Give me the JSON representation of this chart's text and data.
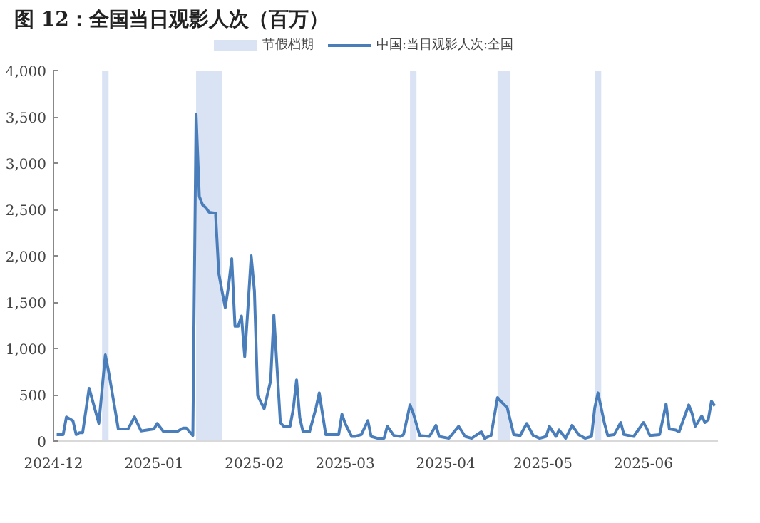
{
  "chart_data": {
    "type": "line",
    "title": "图 12：全国当日观影人次（百万）",
    "series": [
      {
        "name": "中国:当日观影人次:全国",
        "color": "#4a7ebb",
        "x": [
          "2024-12-16",
          "2024-12-18",
          "2024-12-19",
          "2024-12-21",
          "2024-12-22",
          "2024-12-23",
          "2024-12-24",
          "2024-12-26",
          "2024-12-29",
          "2024-12-31",
          "2025-01-01",
          "2025-01-03",
          "2025-01-04",
          "2025-01-07",
          "2025-01-09",
          "2025-01-11",
          "2025-01-15",
          "2025-01-16",
          "2025-01-18",
          "2025-01-22",
          "2025-01-24",
          "2025-01-25",
          "2025-01-27",
          "2025-01-28",
          "2025-01-29",
          "2025-01-30",
          "2025-01-31",
          "2025-02-01",
          "2025-02-03",
          "2025-02-04",
          "2025-02-05",
          "2025-02-06",
          "2025-02-07",
          "2025-02-08",
          "2025-02-09",
          "2025-02-10",
          "2025-02-11",
          "2025-02-12",
          "2025-02-13",
          "2025-02-14",
          "2025-02-15",
          "2025-02-16",
          "2025-02-17",
          "2025-02-18",
          "2025-02-20",
          "2025-02-21",
          "2025-02-23",
          "2025-02-24",
          "2025-02-26",
          "2025-02-27",
          "2025-02-28",
          "2025-03-01",
          "2025-03-02",
          "2025-03-04",
          "2025-03-06",
          "2025-03-07",
          "2025-03-09",
          "2025-03-10",
          "2025-03-13",
          "2025-03-14",
          "2025-03-15",
          "2025-03-17",
          "2025-03-18",
          "2025-03-20",
          "2025-03-22",
          "2025-03-23",
          "2025-03-25",
          "2025-03-27",
          "2025-03-28",
          "2025-03-30",
          "2025-04-01",
          "2025-04-02",
          "2025-04-04",
          "2025-04-05",
          "2025-04-07",
          "2025-04-10",
          "2025-04-12",
          "2025-04-13",
          "2025-04-16",
          "2025-04-19",
          "2025-04-21",
          "2025-04-23",
          "2025-04-26",
          "2025-04-27",
          "2025-04-29",
          "2025-05-01",
          "2025-05-02",
          "2025-05-04",
          "2025-05-06",
          "2025-05-08",
          "2025-05-10",
          "2025-05-12",
          "2025-05-14",
          "2025-05-16",
          "2025-05-17",
          "2025-05-19",
          "2025-05-20",
          "2025-05-22",
          "2025-05-24",
          "2025-05-26",
          "2025-05-28",
          "2025-05-30",
          "2025-05-31",
          "2025-06-01",
          "2025-06-03",
          "2025-06-04",
          "2025-06-06",
          "2025-06-08",
          "2025-06-09",
          "2025-06-12",
          "2025-06-13",
          "2025-06-15",
          "2025-06-16",
          "2025-06-17",
          "2025-06-20",
          "2025-06-22",
          "2025-06-23",
          "2025-06-25",
          "2025-06-26",
          "2025-06-29",
          "2025-06-30",
          "2025-07-01",
          "2025-07-03",
          "2025-07-04",
          "2025-07-05",
          "2025-07-06",
          "2025-07-07"
        ],
        "values": [
          70,
          70,
          260,
          220,
          70,
          90,
          90,
          570,
          190,
          930,
          750,
          340,
          130,
          130,
          260,
          110,
          130,
          190,
          100,
          100,
          140,
          140,
          60,
          3530,
          2640,
          2550,
          2520,
          2470,
          2460,
          1810,
          1620,
          1440,
          1670,
          1970,
          1240,
          1240,
          1350,
          910,
          1440,
          2000,
          1620,
          490,
          420,
          350,
          650,
          1360,
          200,
          160,
          160,
          350,
          660,
          250,
          100,
          100,
          360,
          520,
          70,
          70,
          70,
          290,
          190,
          50,
          50,
          70,
          220,
          50,
          30,
          30,
          160,
          60,
          50,
          70,
          390,
          300,
          60,
          50,
          170,
          50,
          30,
          160,
          50,
          30,
          100,
          30,
          60,
          470,
          430,
          360,
          70,
          60,
          190,
          60,
          30,
          50,
          160,
          50,
          120,
          30,
          170,
          70,
          30,
          50,
          360,
          520,
          190,
          60,
          70,
          200,
          70,
          50,
          100,
          200,
          140,
          60,
          70,
          400,
          130,
          120,
          100,
          390,
          300,
          160,
          270,
          200,
          230,
          430,
          380
        ]
      }
    ],
    "bands": [
      {
        "axis": "x",
        "from": "2024-12-30",
        "to": "2025-01-01",
        "label": "节假档期",
        "color": "#dae3f3"
      },
      {
        "axis": "x",
        "from": "2025-01-28",
        "to": "2025-02-05",
        "color": "#dae3f3"
      },
      {
        "axis": "x",
        "from": "2025-04-04",
        "to": "2025-04-06",
        "color": "#dae3f3"
      },
      {
        "axis": "x",
        "from": "2025-05-01",
        "to": "2025-05-05",
        "color": "#dae3f3"
      },
      {
        "axis": "x",
        "from": "2025-05-31",
        "to": "2025-06-02",
        "color": "#dae3f3"
      }
    ],
    "xlim": [
      "2024-12-15",
      "2025-07-08"
    ],
    "xticks": [
      {
        "value": "2024-12-15",
        "label": "2024-12"
      },
      {
        "value": "2025-01-15",
        "label": "2025-01"
      },
      {
        "value": "2025-02-15",
        "label": "2025-02"
      },
      {
        "value": "2025-03-15",
        "label": "2025-03"
      },
      {
        "value": "2025-04-15",
        "label": "2025-04"
      },
      {
        "value": "2025-05-15",
        "label": "2025-05"
      },
      {
        "value": "2025-06-15",
        "label": "2025-06"
      }
    ],
    "ylim": [
      0,
      4000
    ],
    "yticks": [
      0,
      {
        "value": 500,
        "label": "500"
      },
      {
        "value": 1000,
        "label": "1,000"
      },
      {
        "value": 1500,
        "label": "1,500"
      },
      {
        "value": 2000,
        "label": "2,000"
      },
      {
        "value": 2500,
        "label": "2,500"
      },
      {
        "value": 3000,
        "label": "3,000"
      },
      {
        "value": 3500,
        "label": "3,500"
      },
      {
        "value": 4000,
        "label": "4,000"
      }
    ],
    "grid": false,
    "legend": "top",
    "line_style": "solid",
    "marker": "none"
  }
}
